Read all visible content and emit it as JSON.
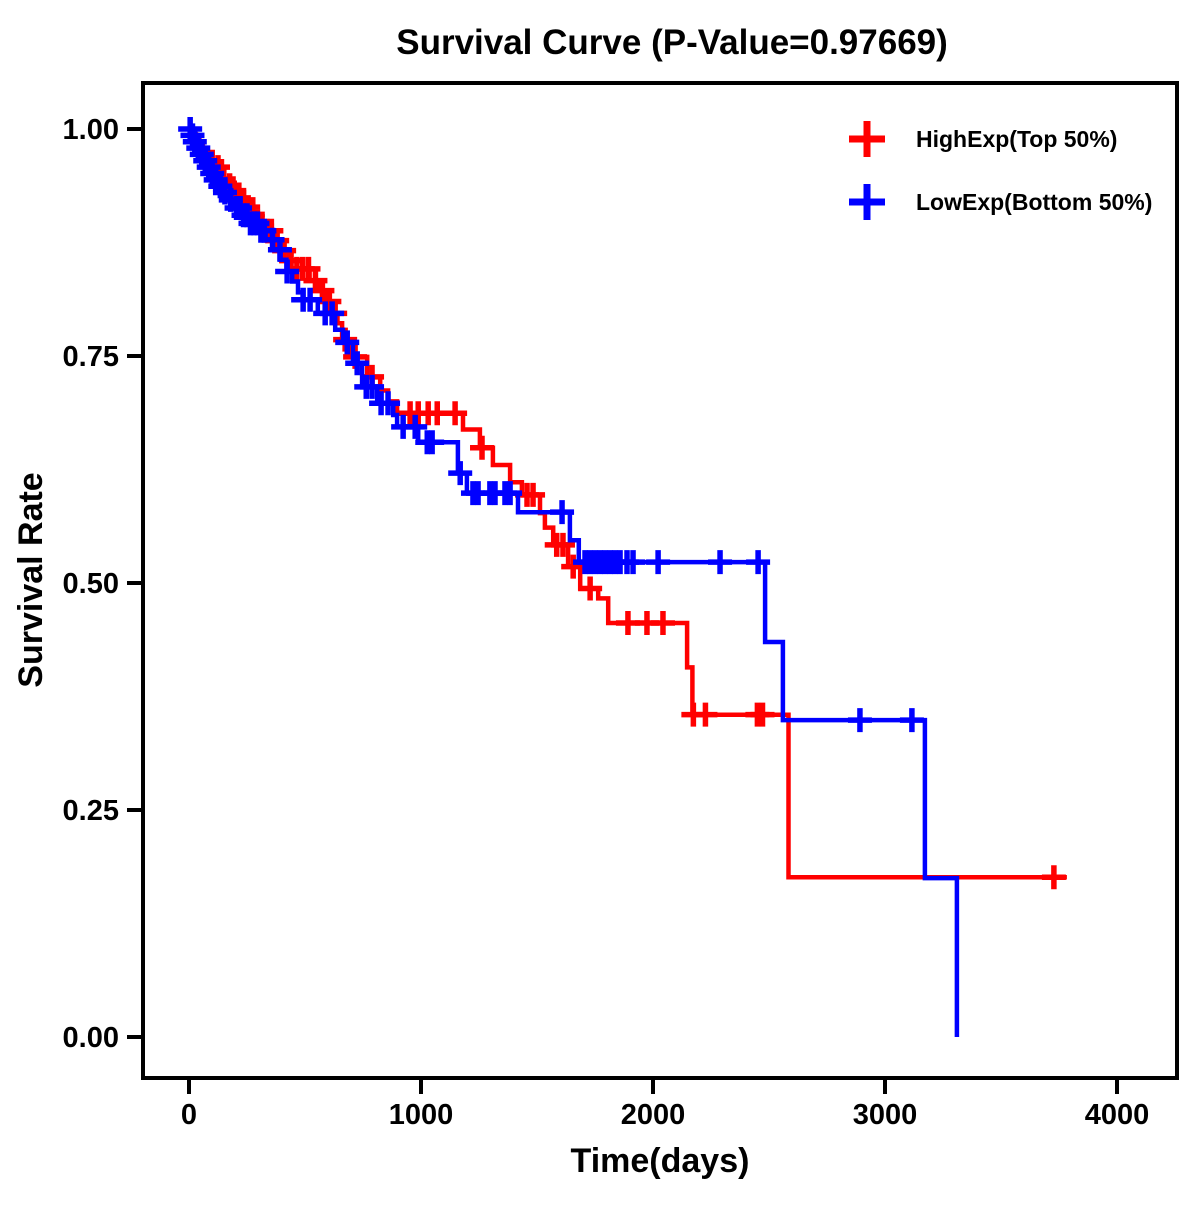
{
  "chart_data": {
    "type": "line",
    "subtype": "kaplan-meier-step",
    "title": "Survival Curve (P-Value=0.97669)",
    "p_value": "0.97669",
    "xlabel": "Time(days)",
    "ylabel": "Survival Rate",
    "grid": false,
    "legend_position": "top-right-inside",
    "x_axis": {
      "label": "Time(days)",
      "tick_values": [
        0,
        1000,
        2000,
        3000,
        4000
      ],
      "tick_labels": [
        "0",
        "1000",
        "2000",
        "3000",
        "4000"
      ],
      "range_days": [
        -200,
        4260
      ]
    },
    "y_axis": {
      "label": "Survival Rate",
      "tick_values": [
        0.0,
        0.25,
        0.5,
        0.75,
        1.0
      ],
      "tick_labels": [
        "0.00",
        "0.25",
        "0.50",
        "0.75",
        "1.00"
      ],
      "range": [
        -0.045,
        1.05
      ]
    },
    "series": [
      {
        "name": "HighExp(Top 50%)",
        "color": "#ff0000",
        "marker": "plus-censor",
        "steps": [
          [
            0,
            1.0
          ],
          [
            15,
            0.994
          ],
          [
            30,
            0.988
          ],
          [
            45,
            0.982
          ],
          [
            60,
            0.976
          ],
          [
            80,
            0.97
          ],
          [
            95,
            0.964
          ],
          [
            110,
            0.958
          ],
          [
            130,
            0.952
          ],
          [
            150,
            0.945
          ],
          [
            170,
            0.938
          ],
          [
            190,
            0.93
          ],
          [
            215,
            0.922
          ],
          [
            240,
            0.914
          ],
          [
            262,
            0.906
          ],
          [
            285,
            0.898
          ],
          [
            310,
            0.893
          ],
          [
            335,
            0.888
          ],
          [
            365,
            0.877
          ],
          [
            400,
            0.866
          ],
          [
            430,
            0.855
          ],
          [
            465,
            0.846
          ],
          [
            520,
            0.833
          ],
          [
            555,
            0.822
          ],
          [
            590,
            0.81
          ],
          [
            615,
            0.797
          ],
          [
            640,
            0.786
          ],
          [
            660,
            0.768
          ],
          [
            694,
            0.749
          ],
          [
            768,
            0.727
          ],
          [
            824,
            0.712
          ],
          [
            858,
            0.7
          ],
          [
            897,
            0.687
          ],
          [
            1181,
            0.669
          ],
          [
            1254,
            0.649
          ],
          [
            1310,
            0.63
          ],
          [
            1384,
            0.611
          ],
          [
            1435,
            0.597
          ],
          [
            1513,
            0.577
          ],
          [
            1534,
            0.561
          ],
          [
            1570,
            0.542
          ],
          [
            1634,
            0.518
          ],
          [
            1686,
            0.494
          ],
          [
            1764,
            0.483
          ],
          [
            1807,
            0.456
          ],
          [
            2147,
            0.407
          ],
          [
            2170,
            0.355
          ],
          [
            2584,
            0.176
          ]
        ],
        "end_time": 3784,
        "censor_times": [
          100,
          125,
          150,
          175,
          195,
          215,
          235,
          255,
          275,
          295,
          315,
          335,
          355,
          380,
          410,
          440,
          465,
          490,
          515,
          545,
          575,
          605,
          630,
          673,
          716,
          789,
          953,
          988,
          1031,
          1070,
          1147,
          1263,
          1457,
          1483,
          1585,
          1612,
          1656,
          1729,
          1892,
          1974,
          2043,
          2174,
          2226,
          2450,
          2472,
          3728
        ]
      },
      {
        "name": "LowExp(Bottom 50%)",
        "color": "#0000ff",
        "marker": "plus-censor",
        "steps": [
          [
            0,
            1.0
          ],
          [
            10,
            0.993
          ],
          [
            22,
            0.986
          ],
          [
            34,
            0.979
          ],
          [
            46,
            0.972
          ],
          [
            60,
            0.965
          ],
          [
            75,
            0.958
          ],
          [
            90,
            0.951
          ],
          [
            110,
            0.944
          ],
          [
            130,
            0.937
          ],
          [
            152,
            0.93
          ],
          [
            175,
            0.922
          ],
          [
            200,
            0.913
          ],
          [
            230,
            0.905
          ],
          [
            262,
            0.896
          ],
          [
            300,
            0.888
          ],
          [
            330,
            0.878
          ],
          [
            362,
            0.867
          ],
          [
            395,
            0.856
          ],
          [
            420,
            0.843
          ],
          [
            445,
            0.832
          ],
          [
            470,
            0.82
          ],
          [
            490,
            0.812
          ],
          [
            555,
            0.797
          ],
          [
            630,
            0.779
          ],
          [
            664,
            0.765
          ],
          [
            707,
            0.742
          ],
          [
            746,
            0.716
          ],
          [
            811,
            0.698
          ],
          [
            880,
            0.685
          ],
          [
            897,
            0.672
          ],
          [
            988,
            0.655
          ],
          [
            1159,
            0.621
          ],
          [
            1198,
            0.599
          ],
          [
            1418,
            0.578
          ],
          [
            1642,
            0.547
          ],
          [
            1680,
            0.523
          ],
          [
            2483,
            0.435
          ],
          [
            2560,
            0.349
          ],
          [
            3172,
            0.175
          ],
          [
            3310,
            0.0
          ]
        ],
        "end_time": 3310,
        "censor_times": [
          5,
          15,
          25,
          40,
          55,
          70,
          85,
          100,
          115,
          135,
          155,
          180,
          205,
          220,
          235,
          250,
          265,
          280,
          295,
          310,
          325,
          360,
          392,
          423,
          492,
          522,
          587,
          617,
          682,
          725,
          764,
          789,
          828,
          858,
          923,
          975,
          1027,
          1048,
          1169,
          1224,
          1246,
          1297,
          1319,
          1362,
          1384,
          1608,
          1707,
          1728,
          1750,
          1772,
          1793,
          1815,
          1836,
          1858,
          1888,
          1914,
          2022,
          2289,
          2453,
          2892,
          3116
        ]
      }
    ],
    "colors": {
      "high_exp": "#ff0000",
      "low_exp": "#0000ff",
      "axis": "#000000",
      "background": "#ffffff"
    }
  }
}
